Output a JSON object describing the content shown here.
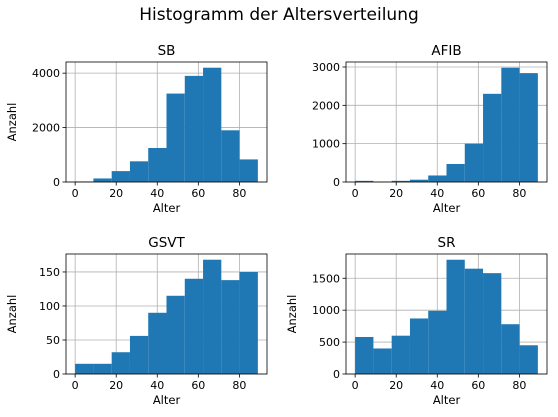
{
  "figure_title": "Histogramm der Altersverteilung",
  "chart_data": [
    {
      "type": "bar",
      "title": "SB",
      "xlabel": "Alter",
      "ylabel": "Anzahl",
      "bin_edges": [
        0,
        8.9,
        17.8,
        26.7,
        35.6,
        44.5,
        53.4,
        62.3,
        71.2,
        80.1,
        89
      ],
      "values": [
        20,
        130,
        400,
        760,
        1250,
        3250,
        3900,
        4200,
        1900,
        830
      ],
      "xlim": [
        -4.45,
        93.45
      ],
      "ylim": [
        0,
        4410
      ],
      "xticks": [
        0,
        20,
        40,
        60,
        80
      ],
      "yticks": [
        0,
        2000,
        4000
      ],
      "grid": true,
      "color": "#1f77b4"
    },
    {
      "type": "bar",
      "title": "AFIB",
      "xlabel": "Alter",
      "ylabel": "",
      "bin_edges": [
        0,
        8.9,
        17.8,
        26.7,
        35.6,
        44.5,
        53.4,
        62.3,
        71.2,
        80.1,
        89
      ],
      "values": [
        30,
        5,
        30,
        60,
        170,
        470,
        1000,
        2300,
        2980,
        2840
      ],
      "xlim": [
        -4.45,
        93.45
      ],
      "ylim": [
        0,
        3130
      ],
      "xticks": [
        0,
        20,
        40,
        60,
        80
      ],
      "yticks": [
        0,
        1000,
        2000,
        3000
      ],
      "grid": true,
      "color": "#1f77b4"
    },
    {
      "type": "bar",
      "title": "GSVT",
      "xlabel": "Alter",
      "ylabel": "Anzahl",
      "bin_edges": [
        0,
        8.9,
        17.8,
        26.7,
        35.6,
        44.5,
        53.4,
        62.3,
        71.2,
        80.1,
        89
      ],
      "values": [
        15,
        15,
        32,
        56,
        90,
        115,
        140,
        168,
        138,
        150
      ],
      "xlim": [
        -4.45,
        93.45
      ],
      "ylim": [
        0,
        176.4
      ],
      "xticks": [
        0,
        20,
        40,
        60,
        80
      ],
      "yticks": [
        0,
        50,
        100,
        150
      ],
      "grid": true,
      "color": "#1f77b4"
    },
    {
      "type": "bar",
      "title": "SR",
      "xlabel": "Alter",
      "ylabel": "Anzahl",
      "bin_edges": [
        0,
        8.9,
        17.8,
        26.7,
        35.6,
        44.5,
        53.4,
        62.3,
        71.2,
        80.1,
        89
      ],
      "values": [
        580,
        400,
        600,
        870,
        990,
        1790,
        1650,
        1580,
        780,
        450
      ],
      "xlim": [
        -4.45,
        93.45
      ],
      "ylim": [
        0,
        1880
      ],
      "xticks": [
        0,
        20,
        40,
        60,
        80
      ],
      "yticks": [
        0,
        500,
        1000,
        1500
      ],
      "grid": true,
      "color": "#1f77b4"
    }
  ]
}
